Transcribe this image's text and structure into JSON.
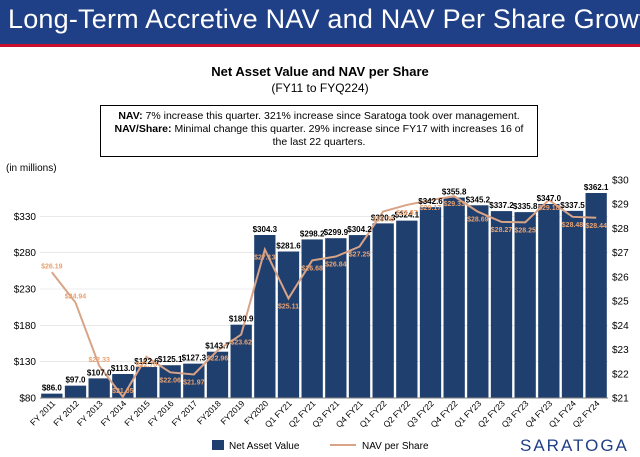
{
  "header": {
    "title": "Long-Term Accretive NAV and NAV Per Share Growth"
  },
  "chart_data": {
    "type": "bar",
    "title": "Net Asset Value and NAV per Share",
    "subtitle": "(FY11 to FYQ224)",
    "ylabel": "(in millions)",
    "categories": [
      "FY 2011",
      "FY 2012",
      "FY 2013",
      "FY 2014",
      "FY 2015",
      "FY 2016",
      "FY 2017",
      "FY2018",
      "FY2019",
      "FY2020",
      "Q1 FY21",
      "Q2 FY21",
      "Q3 FY21",
      "Q4 FY21",
      "Q1 FY22",
      "Q2 FY22",
      "Q3 FY22",
      "Q4 FY22",
      "Q1 FY23",
      "Q2 FY23",
      "Q3 FY23",
      "Q4 FY23",
      "Q1 FY24",
      "Q2 FY24"
    ],
    "series": [
      {
        "name": "Net Asset Value",
        "color": "#1f3f6e",
        "values": [
          86.0,
          97.0,
          107.0,
          113.0,
          122.6,
          125.1,
          127.3,
          143.7,
          180.9,
          304.3,
          281.6,
          298.2,
          299.9,
          304.2,
          320.3,
          324.1,
          342.6,
          355.8,
          345.2,
          337.2,
          335.8,
          347.0,
          337.5,
          362.1
        ],
        "labels": [
          "$86.0",
          "$97.0",
          "$107.0",
          "$113.0",
          "$122.6",
          "$125.1",
          "$127.3",
          "$143.7",
          "$180.9",
          "$304.3",
          "$281.6",
          "$298.2",
          "$299.9",
          "$304.2",
          "$320.3",
          "$324.1",
          "$342.6",
          "$355.8",
          "$345.2",
          "$337.2",
          "$335.8",
          "$347.0",
          "$337.5",
          "$362.1"
        ]
      },
      {
        "name": "NAV per Share",
        "color": "#d8a386",
        "values": [
          26.19,
          24.94,
          22.33,
          21.05,
          22.7,
          22.06,
          21.97,
          22.96,
          23.62,
          27.13,
          25.11,
          26.68,
          26.84,
          27.25,
          28.7,
          28.97,
          29.17,
          29.33,
          28.69,
          28.27,
          28.25,
          29.18,
          28.48,
          28.44
        ],
        "labels": [
          "$26.19",
          "$24.94",
          "$22.33",
          "$21.05",
          "$22.70",
          "$22.06",
          "$21.97",
          "$22.96",
          "$23.62",
          "$27.13",
          "$25.11",
          "$26.68",
          "$26.84",
          "$27.25",
          "$28.70",
          "$28.97",
          "$29.17",
          "$29.33",
          "$28.69",
          "$28.27",
          "$28.25",
          "$29.18",
          "$28.48",
          "$28.44"
        ]
      }
    ],
    "y_left": {
      "ylim": [
        80,
        380
      ],
      "ticks": [
        80,
        130,
        180,
        230,
        280,
        330
      ],
      "tick_labels": [
        "$80",
        "$130",
        "$180",
        "$230",
        "$280",
        "$330"
      ]
    },
    "y_right": {
      "ylim": [
        21,
        30
      ],
      "ticks": [
        21,
        22,
        23,
        24,
        25,
        26,
        27,
        28,
        29,
        30
      ],
      "tick_labels": [
        "$21",
        "$22",
        "$23",
        "$24",
        "$25",
        "$26",
        "$27",
        "$28",
        "$29",
        "$30"
      ]
    },
    "legend": [
      "Net Asset Value",
      "NAV per Share"
    ],
    "legend_position": "bottom-center"
  },
  "note": {
    "nav_label": "NAV:",
    "nav_text": " 7% increase this quarter. 321% increase since Saratoga took over management.",
    "share_label": "NAV/Share:",
    "share_text": " Minimal change this quarter. 29% increase since FY17 with increases 16 of the last 22 quarters."
  },
  "footer": {
    "logo_text": "SARATOGA"
  }
}
